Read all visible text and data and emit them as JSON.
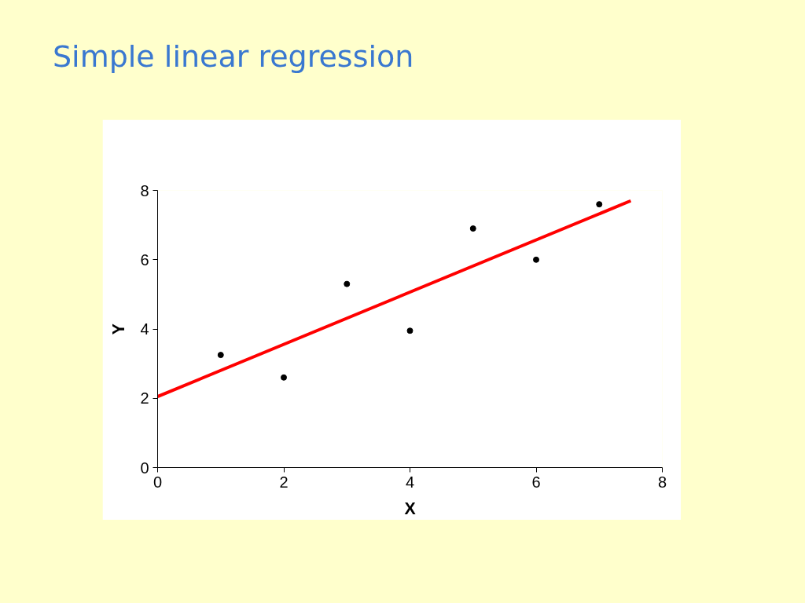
{
  "chart_data": {
    "type": "scatter",
    "title": "Simple linear regression",
    "xlabel": "X",
    "ylabel": "Y",
    "x": [
      1,
      2,
      3,
      4,
      5,
      6,
      7
    ],
    "series": [
      {
        "color": "#000000",
        "marker": "circle",
        "values": [
          3.25,
          2.6,
          5.3,
          3.95,
          6.9,
          6.0,
          7.6
        ]
      },
      {
        "type": "line",
        "color": "#ff0000",
        "marker": "none",
        "x": [
          0,
          7.5
        ],
        "values": [
          2.05,
          7.7
        ]
      }
    ],
    "xlim": [
      0,
      8
    ],
    "ylim": [
      0,
      8
    ],
    "xticks": [
      0,
      2,
      4,
      6,
      8
    ],
    "yticks": [
      0,
      2,
      4,
      6,
      8
    ],
    "grid": false
  }
}
